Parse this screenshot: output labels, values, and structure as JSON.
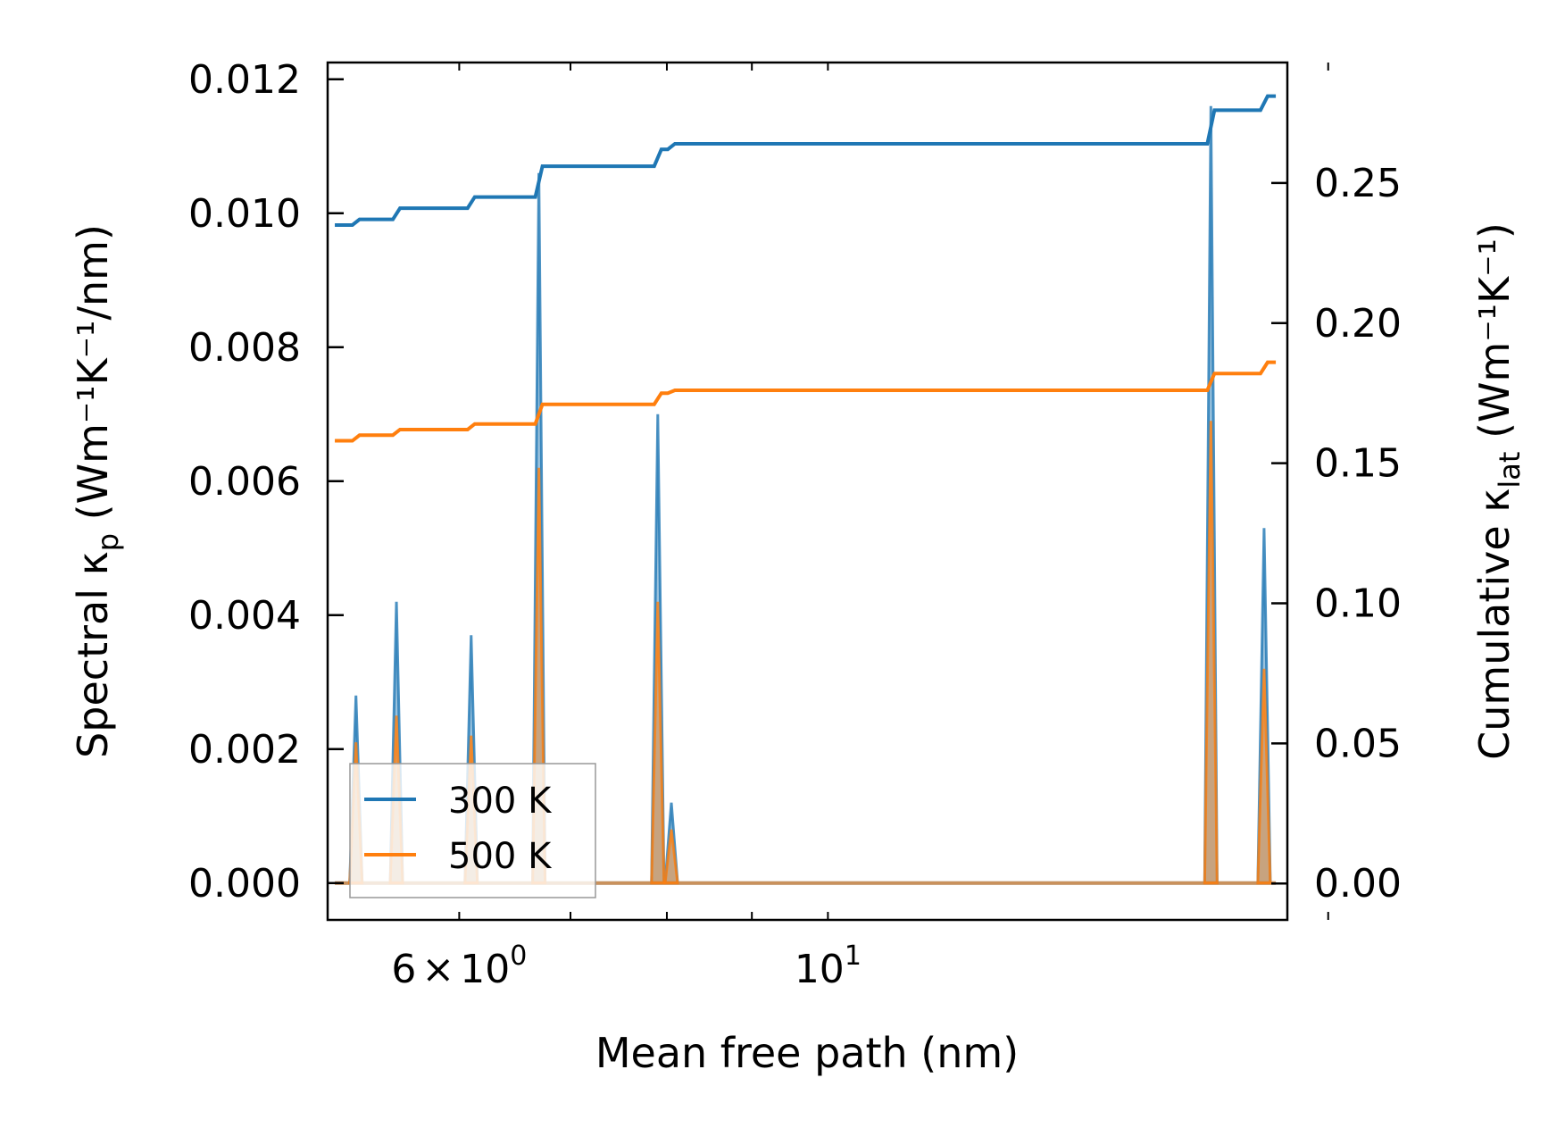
{
  "chart_data": {
    "type": "line",
    "xlabel": "Mean free path (nm)",
    "ylabel_left": {
      "prefix": "Spectral κ",
      "sub": "p",
      "unit": " (Wm⁻¹K⁻¹/nm)"
    },
    "ylabel_right": {
      "prefix": "Cumulative κ",
      "sub": "lat",
      "unit": " (Wm⁻¹K⁻¹)"
    },
    "x_scale": "log",
    "xlim": [
      5.0,
      18.9
    ],
    "ylim_left": [
      -0.00055,
      0.01225
    ],
    "ylim_right": [
      -0.013,
      0.293
    ],
    "x_ticks": [
      {
        "value": 6,
        "mantissa": "6",
        "times": "×",
        "base": "10",
        "exp": "0"
      },
      {
        "value": 10,
        "mantissa": "",
        "times": "",
        "base": "10",
        "exp": "1"
      }
    ],
    "x_minor_ticks": [
      5,
      6,
      7,
      8,
      9,
      10,
      20
    ],
    "y_left_ticks": [
      "0.000",
      "0.002",
      "0.004",
      "0.006",
      "0.008",
      "0.010",
      "0.012"
    ],
    "y_right_ticks": [
      "0.00",
      "0.05",
      "0.10",
      "0.15",
      "0.20",
      "0.25"
    ],
    "legend": {
      "position": "lower-left",
      "entries": [
        "300 K",
        "500 K"
      ]
    },
    "colors": {
      "300 K": "#1f77b4",
      "500 K": "#ff7f0e"
    },
    "spectral_series": [
      {
        "name": "300 K",
        "peaks": [
          {
            "x": 5.2,
            "y": 0.0028
          },
          {
            "x": 5.5,
            "y": 0.0042
          },
          {
            "x": 6.1,
            "y": 0.0037
          },
          {
            "x": 6.7,
            "y": 0.0106
          },
          {
            "x": 7.9,
            "y": 0.007
          },
          {
            "x": 8.05,
            "y": 0.0012
          },
          {
            "x": 17.0,
            "y": 0.0116
          },
          {
            "x": 18.3,
            "y": 0.0053
          }
        ]
      },
      {
        "name": "500 K",
        "peaks": [
          {
            "x": 5.2,
            "y": 0.0021
          },
          {
            "x": 5.5,
            "y": 0.0025
          },
          {
            "x": 6.1,
            "y": 0.0022
          },
          {
            "x": 6.7,
            "y": 0.0062
          },
          {
            "x": 7.9,
            "y": 0.0042
          },
          {
            "x": 8.05,
            "y": 0.0008
          },
          {
            "x": 17.0,
            "y": 0.0069
          },
          {
            "x": 18.3,
            "y": 0.0032
          }
        ]
      }
    ],
    "cumulative_series": [
      {
        "name": "300 K",
        "steps": [
          {
            "x": 5.05,
            "y": 0.235
          },
          {
            "x": 5.2,
            "y": 0.237
          },
          {
            "x": 5.5,
            "y": 0.241
          },
          {
            "x": 6.1,
            "y": 0.245
          },
          {
            "x": 6.7,
            "y": 0.256
          },
          {
            "x": 7.9,
            "y": 0.262
          },
          {
            "x": 8.05,
            "y": 0.264
          },
          {
            "x": 17.0,
            "y": 0.276
          },
          {
            "x": 18.3,
            "y": 0.281
          }
        ],
        "x_end": 18.6
      },
      {
        "name": "500 K",
        "steps": [
          {
            "x": 5.05,
            "y": 0.158
          },
          {
            "x": 5.2,
            "y": 0.16
          },
          {
            "x": 5.5,
            "y": 0.162
          },
          {
            "x": 6.1,
            "y": 0.164
          },
          {
            "x": 6.7,
            "y": 0.171
          },
          {
            "x": 7.9,
            "y": 0.175
          },
          {
            "x": 8.05,
            "y": 0.176
          },
          {
            "x": 17.0,
            "y": 0.182
          },
          {
            "x": 18.3,
            "y": 0.186
          }
        ],
        "x_end": 18.6
      }
    ]
  }
}
